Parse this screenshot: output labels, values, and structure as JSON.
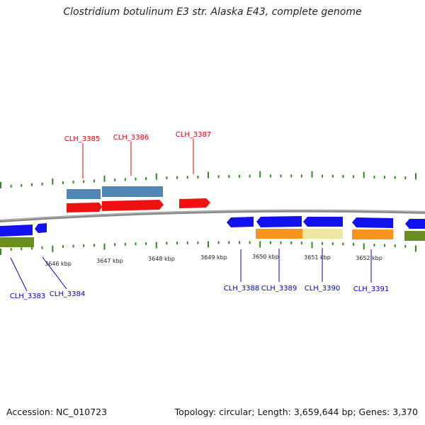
{
  "title": "Clostridium botulinum E3 str. Alaska E43, complete genome",
  "footer": {
    "accession": "Accession: NC_010723",
    "summary": "Topology: circular; Length: 3,659,644 bp; Genes: 3,370"
  },
  "colors": {
    "tick": "#2e8b1e",
    "backbone": "#8a8a8a",
    "forward_label": "#e00000",
    "reverse_label": "#0000cc",
    "steelblue": "#4f86b5",
    "red": "#ee1111",
    "blue": "#1111ee",
    "green": "#6b8e23",
    "orange": "#f7941d",
    "khaki": "#efe6a0"
  },
  "scale_labels": [
    "3646 kbp",
    "3647 kbp",
    "3648 kbp",
    "3649 kbp",
    "3650 kbp",
    "3651 kbp",
    "3652 kbp"
  ],
  "gene_labels": {
    "forward": [
      "CLH_3385",
      "CLH_3386",
      "CLH_3387"
    ],
    "reverse": [
      "CLH_3383",
      "CLH_3384",
      "CLH_3388",
      "CLH_3389",
      "CLH_3390",
      "CLH_3391"
    ]
  }
}
